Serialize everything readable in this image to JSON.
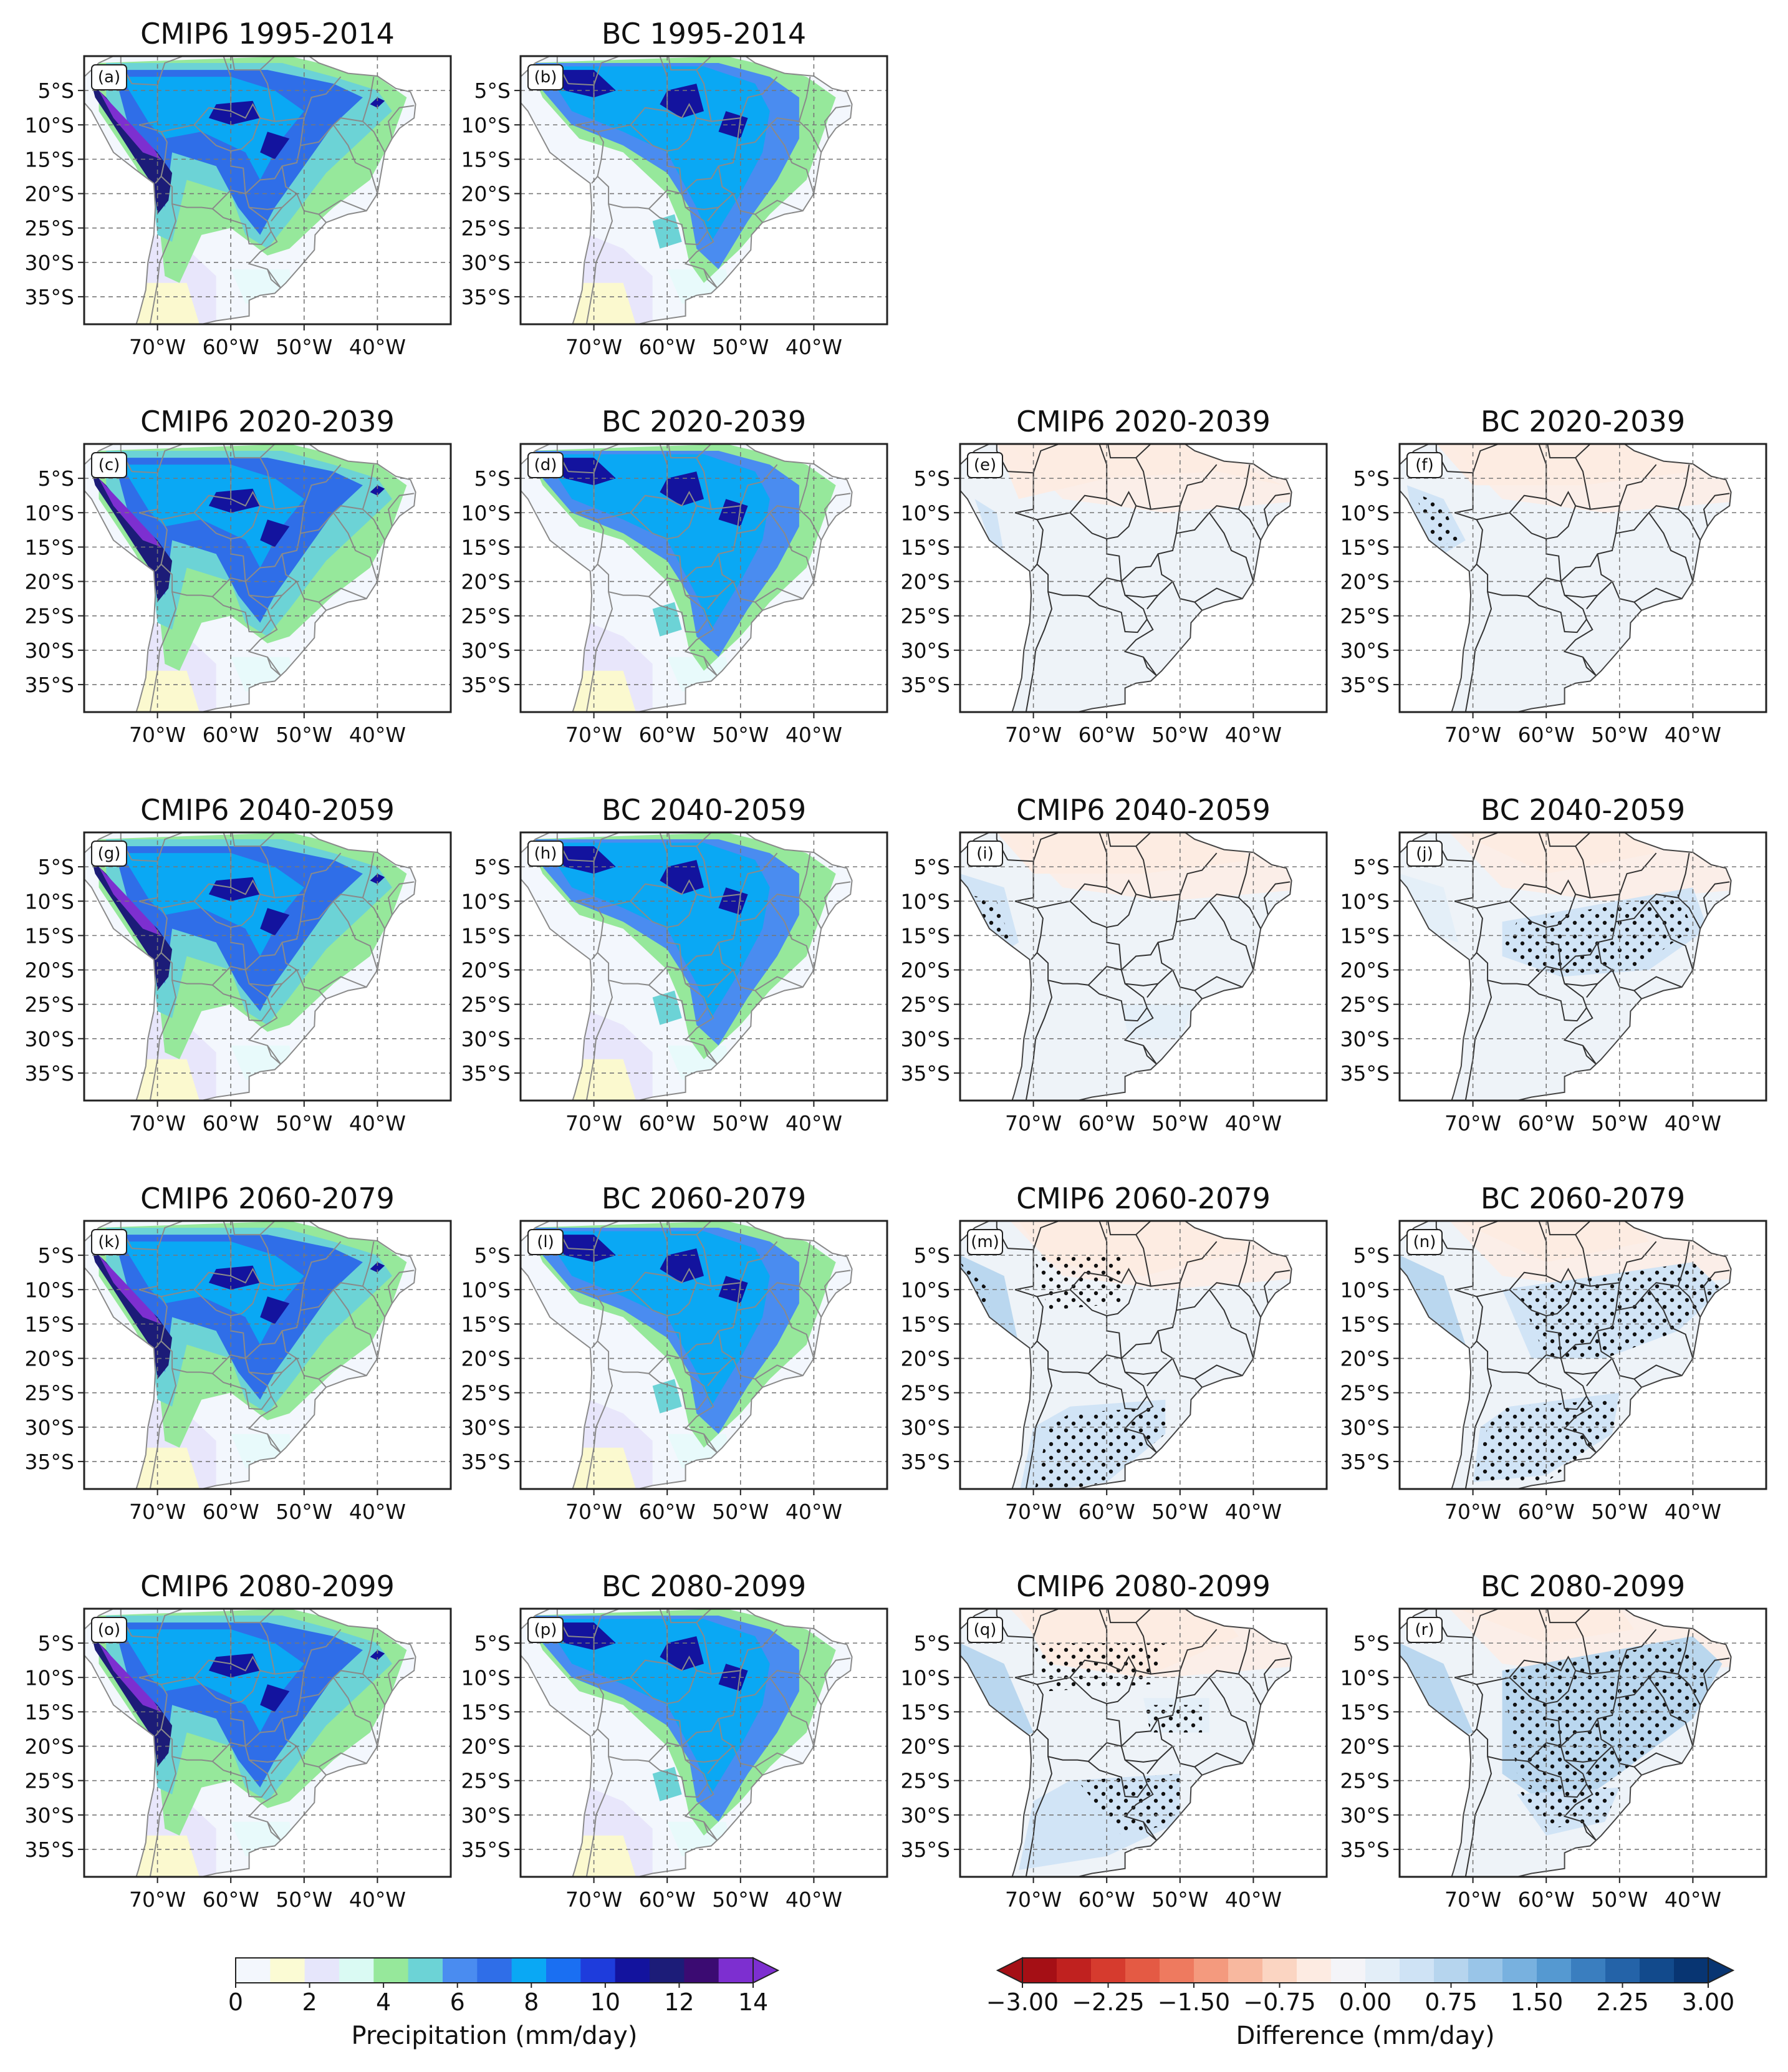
{
  "chart_data": {
    "type": "heatmap",
    "region": "South America",
    "lat_ticks": [
      "5°S",
      "10°S",
      "15°S",
      "20°S",
      "25°S",
      "30°S",
      "35°S"
    ],
    "lon_ticks": [
      "70°W",
      "60°W",
      "50°W",
      "40°W"
    ],
    "lat_range": [
      -39,
      0
    ],
    "lon_range": [
      -80,
      -30
    ],
    "grid": "dashed",
    "panels": [
      {
        "id": "a",
        "title": "CMIP6 1995-2014",
        "label": "(a)",
        "kind": "precip",
        "source": "cmip6",
        "row": 0,
        "col": 0
      },
      {
        "id": "b",
        "title": "BC 1995-2014",
        "label": "(b)",
        "kind": "precip",
        "source": "bc",
        "row": 0,
        "col": 1
      },
      {
        "id": "c",
        "title": "CMIP6 2020-2039",
        "label": "(c)",
        "kind": "precip",
        "source": "cmip6",
        "row": 1,
        "col": 0
      },
      {
        "id": "d",
        "title": "BC 2020-2039",
        "label": "(d)",
        "kind": "precip",
        "source": "bc",
        "row": 1,
        "col": 1
      },
      {
        "id": "e",
        "title": "CMIP6 2020-2039",
        "label": "(e)",
        "kind": "diff",
        "source": "cmip6",
        "period": 1,
        "row": 1,
        "col": 2
      },
      {
        "id": "f",
        "title": "BC 2020-2039",
        "label": "(f)",
        "kind": "diff",
        "source": "bc",
        "period": 1,
        "row": 1,
        "col": 3
      },
      {
        "id": "g",
        "title": "CMIP6 2040-2059",
        "label": "(g)",
        "kind": "precip",
        "source": "cmip6",
        "row": 2,
        "col": 0
      },
      {
        "id": "h",
        "title": "BC 2040-2059",
        "label": "(h)",
        "kind": "precip",
        "source": "bc",
        "row": 2,
        "col": 1
      },
      {
        "id": "i",
        "title": "CMIP6 2040-2059",
        "label": "(i)",
        "kind": "diff",
        "source": "cmip6",
        "period": 2,
        "row": 2,
        "col": 2
      },
      {
        "id": "j",
        "title": "BC 2040-2059",
        "label": "(j)",
        "kind": "diff",
        "source": "bc",
        "period": 2,
        "row": 2,
        "col": 3
      },
      {
        "id": "k",
        "title": "CMIP6 2060-2079",
        "label": "(k)",
        "kind": "precip",
        "source": "cmip6",
        "row": 3,
        "col": 0
      },
      {
        "id": "l",
        "title": "BC 2060-2079",
        "label": "(l)",
        "kind": "precip",
        "source": "bc",
        "row": 3,
        "col": 1
      },
      {
        "id": "m",
        "title": "CMIP6 2060-2079",
        "label": "(m)",
        "kind": "diff",
        "source": "cmip6",
        "period": 3,
        "row": 3,
        "col": 2
      },
      {
        "id": "n",
        "title": "BC 2060-2079",
        "label": "(n)",
        "kind": "diff",
        "source": "bc",
        "period": 3,
        "row": 3,
        "col": 3
      },
      {
        "id": "o",
        "title": "CMIP6 2080-2099",
        "label": "(o)",
        "kind": "precip",
        "source": "cmip6",
        "row": 4,
        "col": 0
      },
      {
        "id": "p",
        "title": "BC 2080-2099",
        "label": "(p)",
        "kind": "precip",
        "source": "bc",
        "row": 4,
        "col": 1
      },
      {
        "id": "q",
        "title": "CMIP6 2080-2099",
        "label": "(q)",
        "kind": "diff",
        "source": "cmip6",
        "period": 4,
        "row": 4,
        "col": 2
      },
      {
        "id": "r",
        "title": "BC 2080-2099",
        "label": "(r)",
        "kind": "diff",
        "source": "bc",
        "period": 4,
        "row": 4,
        "col": 3
      }
    ],
    "colorbars": {
      "precip": {
        "label": "Precipitation (mm/day)",
        "ticks": [
          "0",
          "2",
          "4",
          "6",
          "8",
          "10",
          "12",
          "14"
        ],
        "range": [
          0,
          14
        ],
        "extend": "max",
        "colors": [
          "#f3f7fd",
          "#fbfbd4",
          "#e6e6fb",
          "#dafaf3",
          "#96e89b",
          "#6cd3d6",
          "#4a8cf0",
          "#2f6ee8",
          "#0aa8f4",
          "#1a6ff2",
          "#1e3cdc",
          "#13139e",
          "#1c1c78",
          "#3b0b72",
          "#7d2fd0"
        ]
      },
      "diff": {
        "label": "Difference (mm/day)",
        "ticks": [
          "−3.00",
          "−2.25",
          "−1.50",
          "−0.75",
          "0.00",
          "0.75",
          "1.50",
          "2.25",
          "3.00"
        ],
        "range": [
          -3,
          3
        ],
        "extend": "both",
        "colors": [
          "#a50f15",
          "#c0211f",
          "#d63b2e",
          "#e45a44",
          "#ee7a5f",
          "#f49a7e",
          "#f8b89f",
          "#fbd5c2",
          "#fdebe2",
          "#f4f4f8",
          "#e3eef8",
          "#cfe3f5",
          "#b6d5ee",
          "#99c5e8",
          "#78b1df",
          "#5599d1",
          "#3a7ebf",
          "#2463a8",
          "#124a8c",
          "#083572"
        ]
      }
    }
  }
}
